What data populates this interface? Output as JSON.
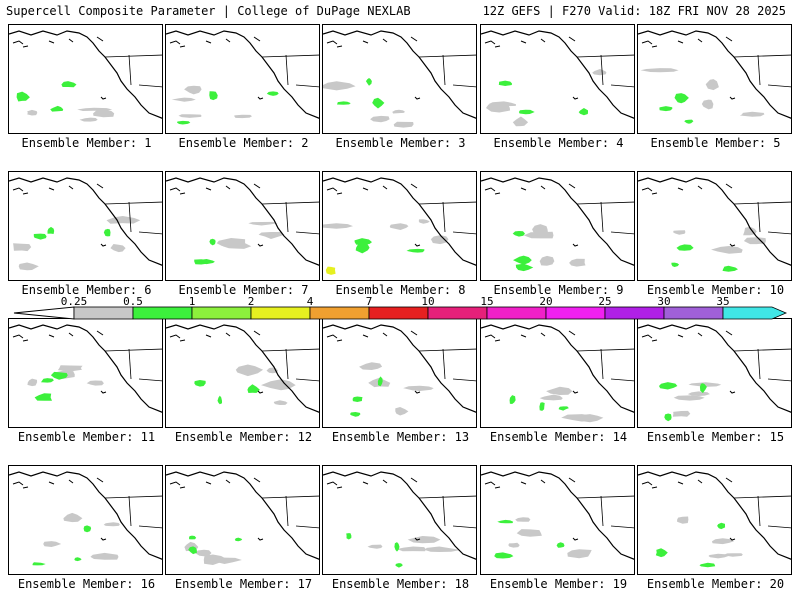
{
  "header": {
    "left_title": "Supercell Composite Parameter | College of DuPage NEXLAB",
    "right_title": "12Z GEFS | F270 Valid: 18Z FRI NOV 28 2025"
  },
  "members": [
    {
      "label": "Ensemble Member: 1"
    },
    {
      "label": "Ensemble Member: 2"
    },
    {
      "label": "Ensemble Member: 3"
    },
    {
      "label": "Ensemble Member: 4"
    },
    {
      "label": "Ensemble Member: 5"
    },
    {
      "label": "Ensemble Member: 6"
    },
    {
      "label": "Ensemble Member: 7"
    },
    {
      "label": "Ensemble Member: 8"
    },
    {
      "label": "Ensemble Member: 9"
    },
    {
      "label": "Ensemble Member: 10"
    },
    {
      "label": "Ensemble Member: 11"
    },
    {
      "label": "Ensemble Member: 12"
    },
    {
      "label": "Ensemble Member: 13"
    },
    {
      "label": "Ensemble Member: 14"
    },
    {
      "label": "Ensemble Member: 15"
    },
    {
      "label": "Ensemble Member: 16"
    },
    {
      "label": "Ensemble Member: 17"
    },
    {
      "label": "Ensemble Member: 18"
    },
    {
      "label": "Ensemble Member: 19"
    },
    {
      "label": "Ensemble Member: 20"
    }
  ],
  "legend": {
    "ticks": [
      "0.25",
      "0.5",
      "1",
      "2",
      "4",
      "7",
      "10",
      "15",
      "20",
      "25",
      "30",
      "35"
    ],
    "colors": [
      "#c8c8c8",
      "#3cf03c",
      "#8cf03c",
      "#e6f020",
      "#f0a030",
      "#e62020",
      "#e6207a",
      "#f020c8",
      "#f020f0",
      "#b020e6",
      "#a060d8",
      "#40e6e6"
    ]
  }
}
